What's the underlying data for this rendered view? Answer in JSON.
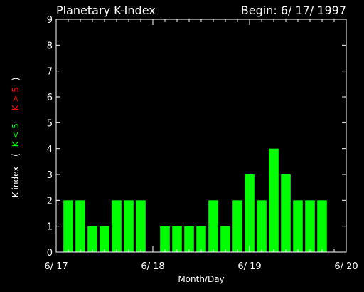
{
  "chart_data": {
    "type": "bar",
    "title": "Planetary K-Index",
    "begin_label": "Begin: 6/ 17/ 1997",
    "xlabel": "Month/Day",
    "ylabel_prefix": "K-index",
    "ylabel_open": "(",
    "ylabel_green": "K < 5",
    "ylabel_red": "K > 5",
    "ylabel_close": ")",
    "ylim": [
      0,
      9
    ],
    "yticks": [
      "0",
      "1",
      "2",
      "3",
      "4",
      "5",
      "6",
      "7",
      "8",
      "9"
    ],
    "xlim": [
      0,
      3
    ],
    "xticks": [
      {
        "value": 0,
        "label": "6/ 17"
      },
      {
        "value": 1,
        "label": "6/ 18"
      },
      {
        "value": 2,
        "label": "6/ 19"
      },
      {
        "value": 3,
        "label": "6/ 20"
      }
    ],
    "bar_width_days": 0.1,
    "series": [
      {
        "color": "#00ff00",
        "x": [
          0.125,
          0.25,
          0.375,
          0.5,
          0.625,
          0.75,
          0.875,
          1.0,
          1.125,
          1.25,
          1.375,
          1.5,
          1.625,
          1.75,
          1.875,
          2.0,
          2.125,
          2.25,
          2.375,
          2.5,
          2.625,
          2.75,
          2.875
        ],
        "values": [
          2,
          2,
          1,
          1,
          2,
          2,
          2,
          0,
          1,
          1,
          1,
          1,
          2,
          1,
          2,
          3,
          2,
          4,
          3,
          2,
          2,
          2,
          0
        ]
      }
    ],
    "colors": {
      "background": "#000000",
      "axes": "#ffffff",
      "bar": "#00ff00",
      "label_green": "#00ff00",
      "label_red": "#ff0000"
    }
  }
}
